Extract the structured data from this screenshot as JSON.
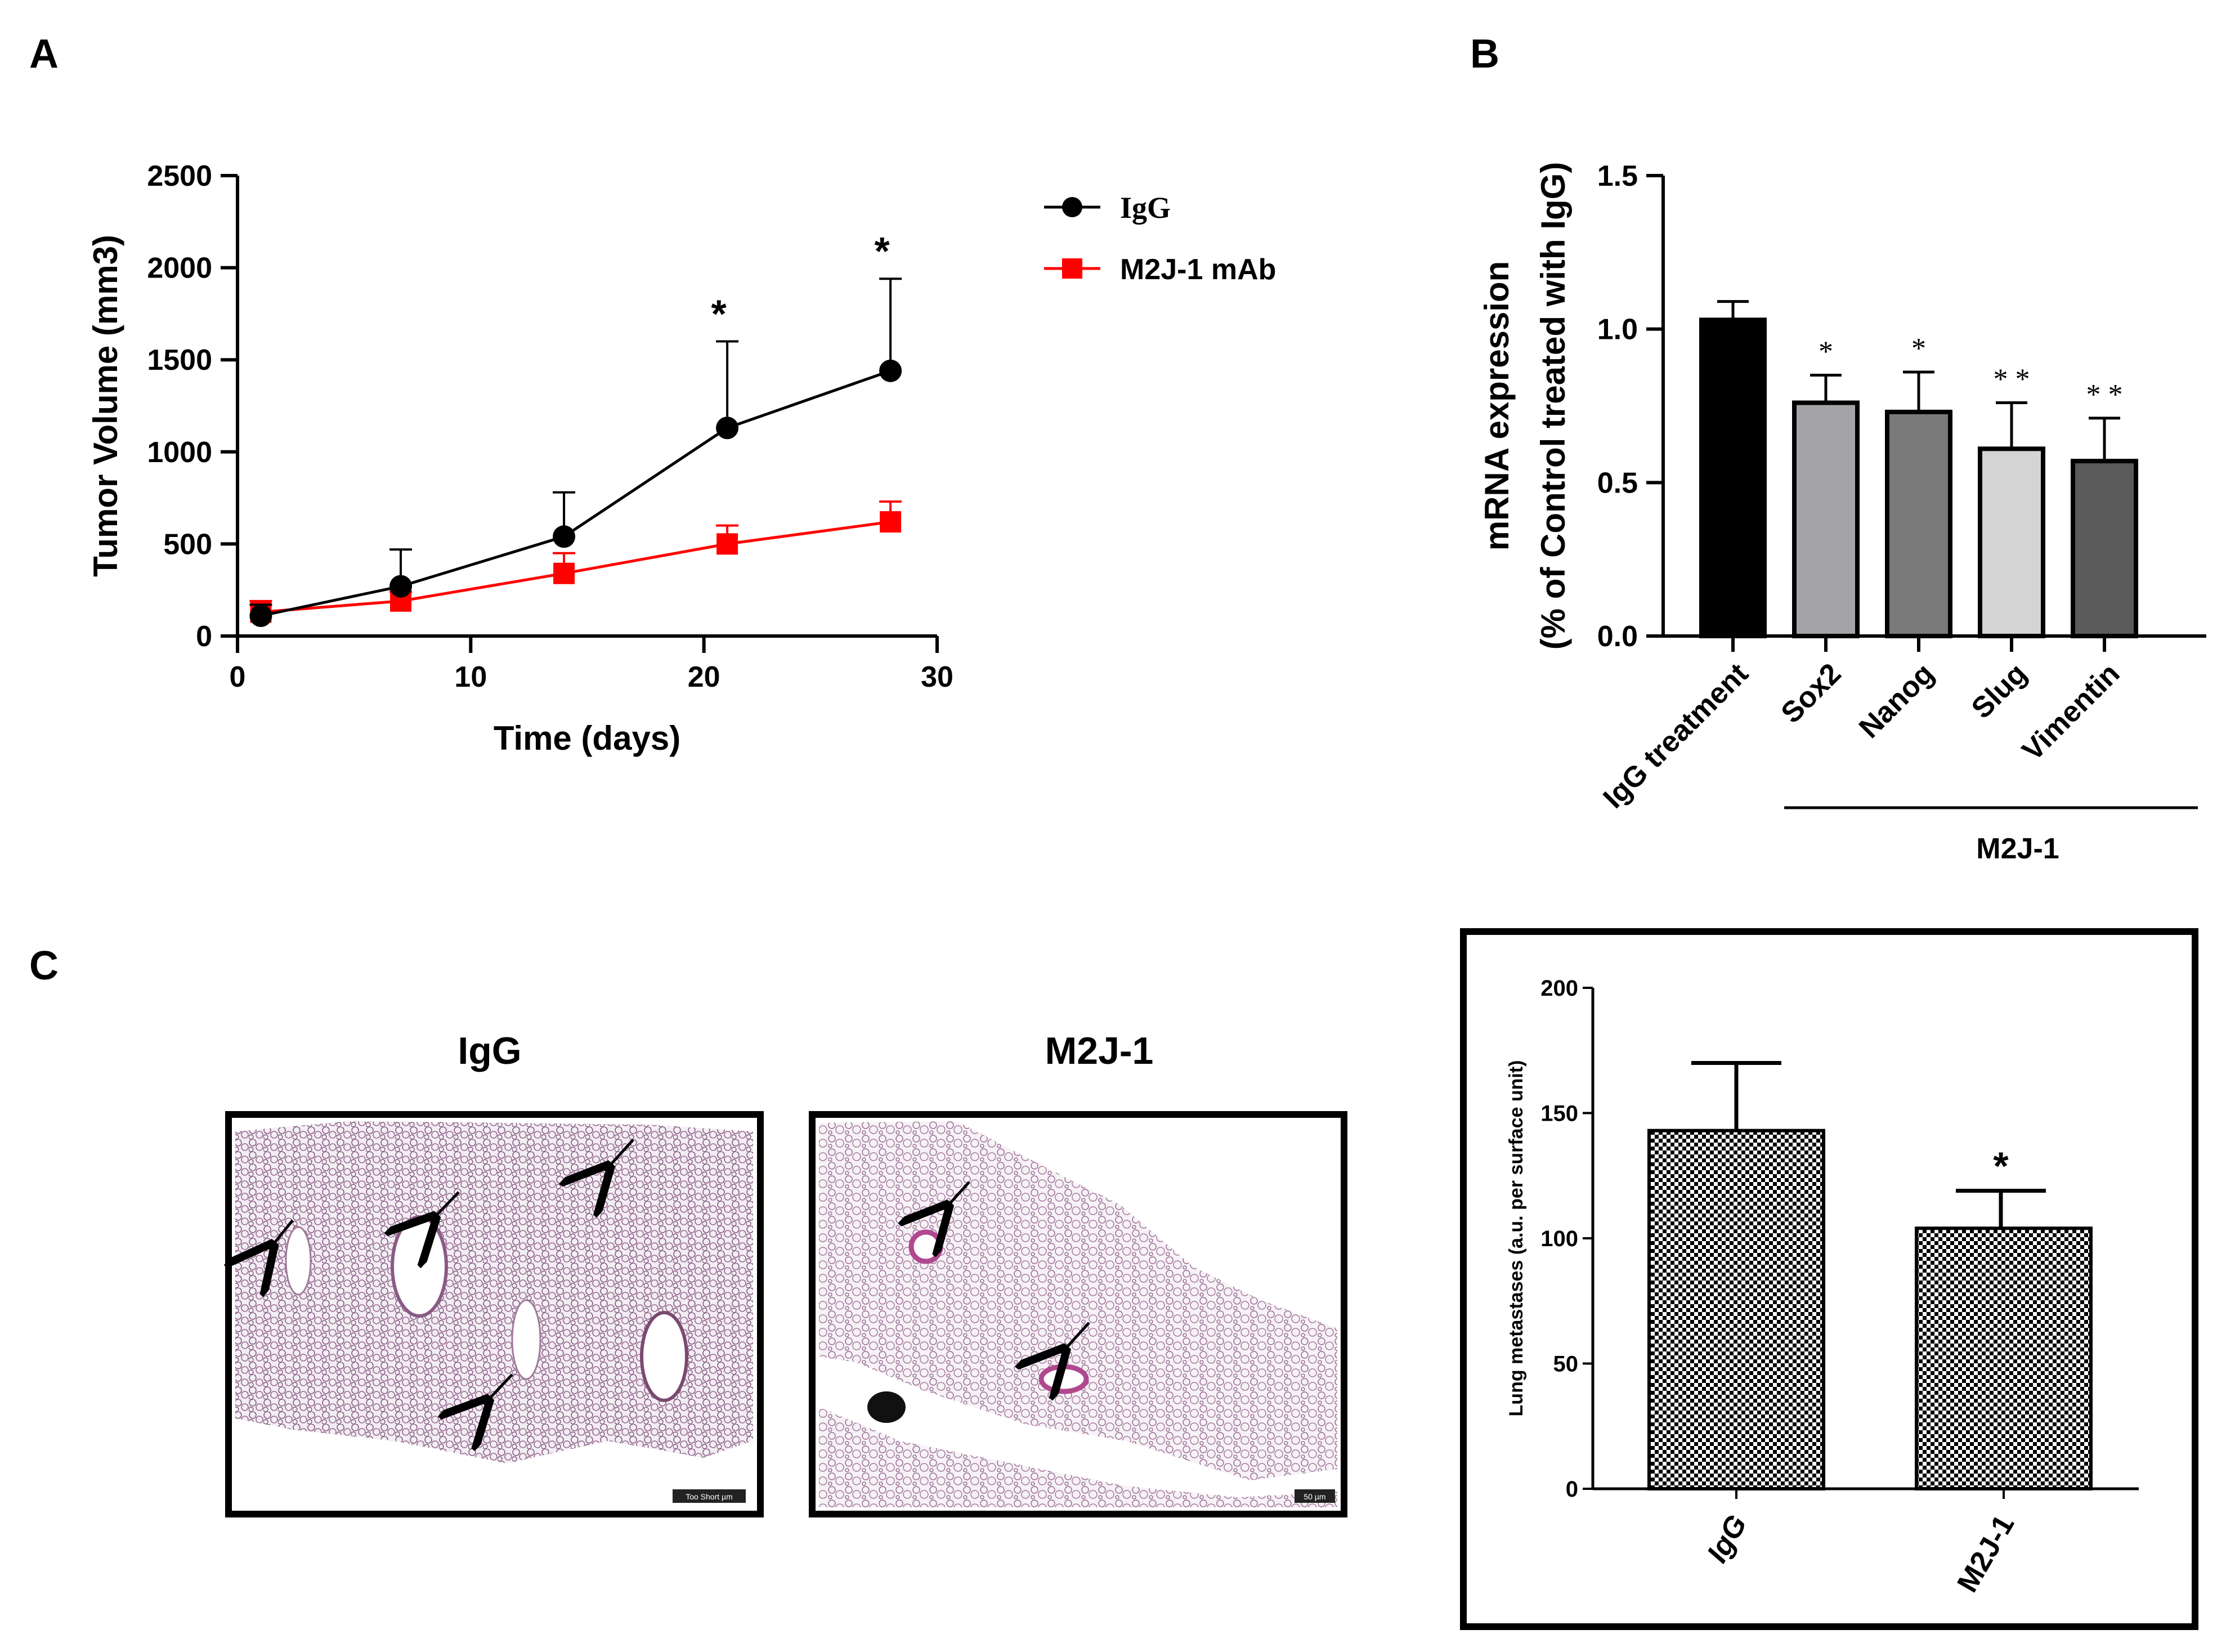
{
  "panels": {
    "a": "A",
    "b": "B",
    "c": "C"
  },
  "chart_data": [
    {
      "panel": "A",
      "type": "line",
      "title": "",
      "xlabel": "Time (days)",
      "ylabel": "Tumor Volume (mm3)",
      "xlim": [
        0,
        30
      ],
      "ylim": [
        0,
        2500
      ],
      "xticks": [
        "0",
        "10",
        "20",
        "30"
      ],
      "yticks": [
        "0",
        "500",
        "1000",
        "1500",
        "2000",
        "2500"
      ],
      "x": [
        1,
        7,
        14,
        21,
        28
      ],
      "series": [
        {
          "name": "IgG",
          "color": "#000000",
          "marker": "circle",
          "values": [
            110,
            270,
            540,
            1130,
            1440
          ],
          "errors": [
            60,
            200,
            240,
            470,
            500
          ]
        },
        {
          "name": "M2J-1 mAb",
          "color": "#ff0000",
          "marker": "square",
          "values": [
            130,
            190,
            340,
            500,
            620
          ],
          "errors": [
            60,
            50,
            110,
            100,
            110
          ]
        }
      ],
      "annotations": [
        {
          "text": "*",
          "x": 21
        },
        {
          "text": "*",
          "x": 28
        }
      ],
      "legend_position": "right"
    },
    {
      "panel": "B",
      "type": "bar",
      "title": "",
      "ylabel_line1": "mRNA expression",
      "ylabel_line2": "(% of Control treated with IgG)",
      "ylim": [
        0,
        1.5
      ],
      "yticks": [
        "0.0",
        "0.5",
        "1.0",
        "1.5"
      ],
      "categories": [
        "IgG treatment",
        "Sox2",
        "Nanog",
        "Slug",
        "Vimentin"
      ],
      "values": [
        1.03,
        0.76,
        0.73,
        0.61,
        0.57
      ],
      "errors": [
        0.06,
        0.09,
        0.13,
        0.15,
        0.14
      ],
      "colors": [
        "#000000",
        "#a3a3a8",
        "#7a7a7a",
        "#d4d4d4",
        "#5a5a5a"
      ],
      "significance": [
        "",
        "*",
        "*",
        "**",
        "**"
      ],
      "group_label": "M2J-1"
    },
    {
      "panel": "C",
      "type": "bar",
      "title": "",
      "ylabel": "Lung metastases (a.u. per surface unit)",
      "ylim": [
        0,
        200
      ],
      "yticks": [
        "0",
        "50",
        "100",
        "150",
        "200"
      ],
      "categories": [
        "IgG",
        "M2J-1"
      ],
      "values": [
        143,
        104
      ],
      "errors": [
        27,
        15
      ],
      "significance": [
        "",
        "*"
      ]
    }
  ],
  "micrographs": {
    "left_title": "IgG",
    "right_title": "M2J-1",
    "left_scale": "Too Short µm",
    "right_scale": "50 µm"
  }
}
